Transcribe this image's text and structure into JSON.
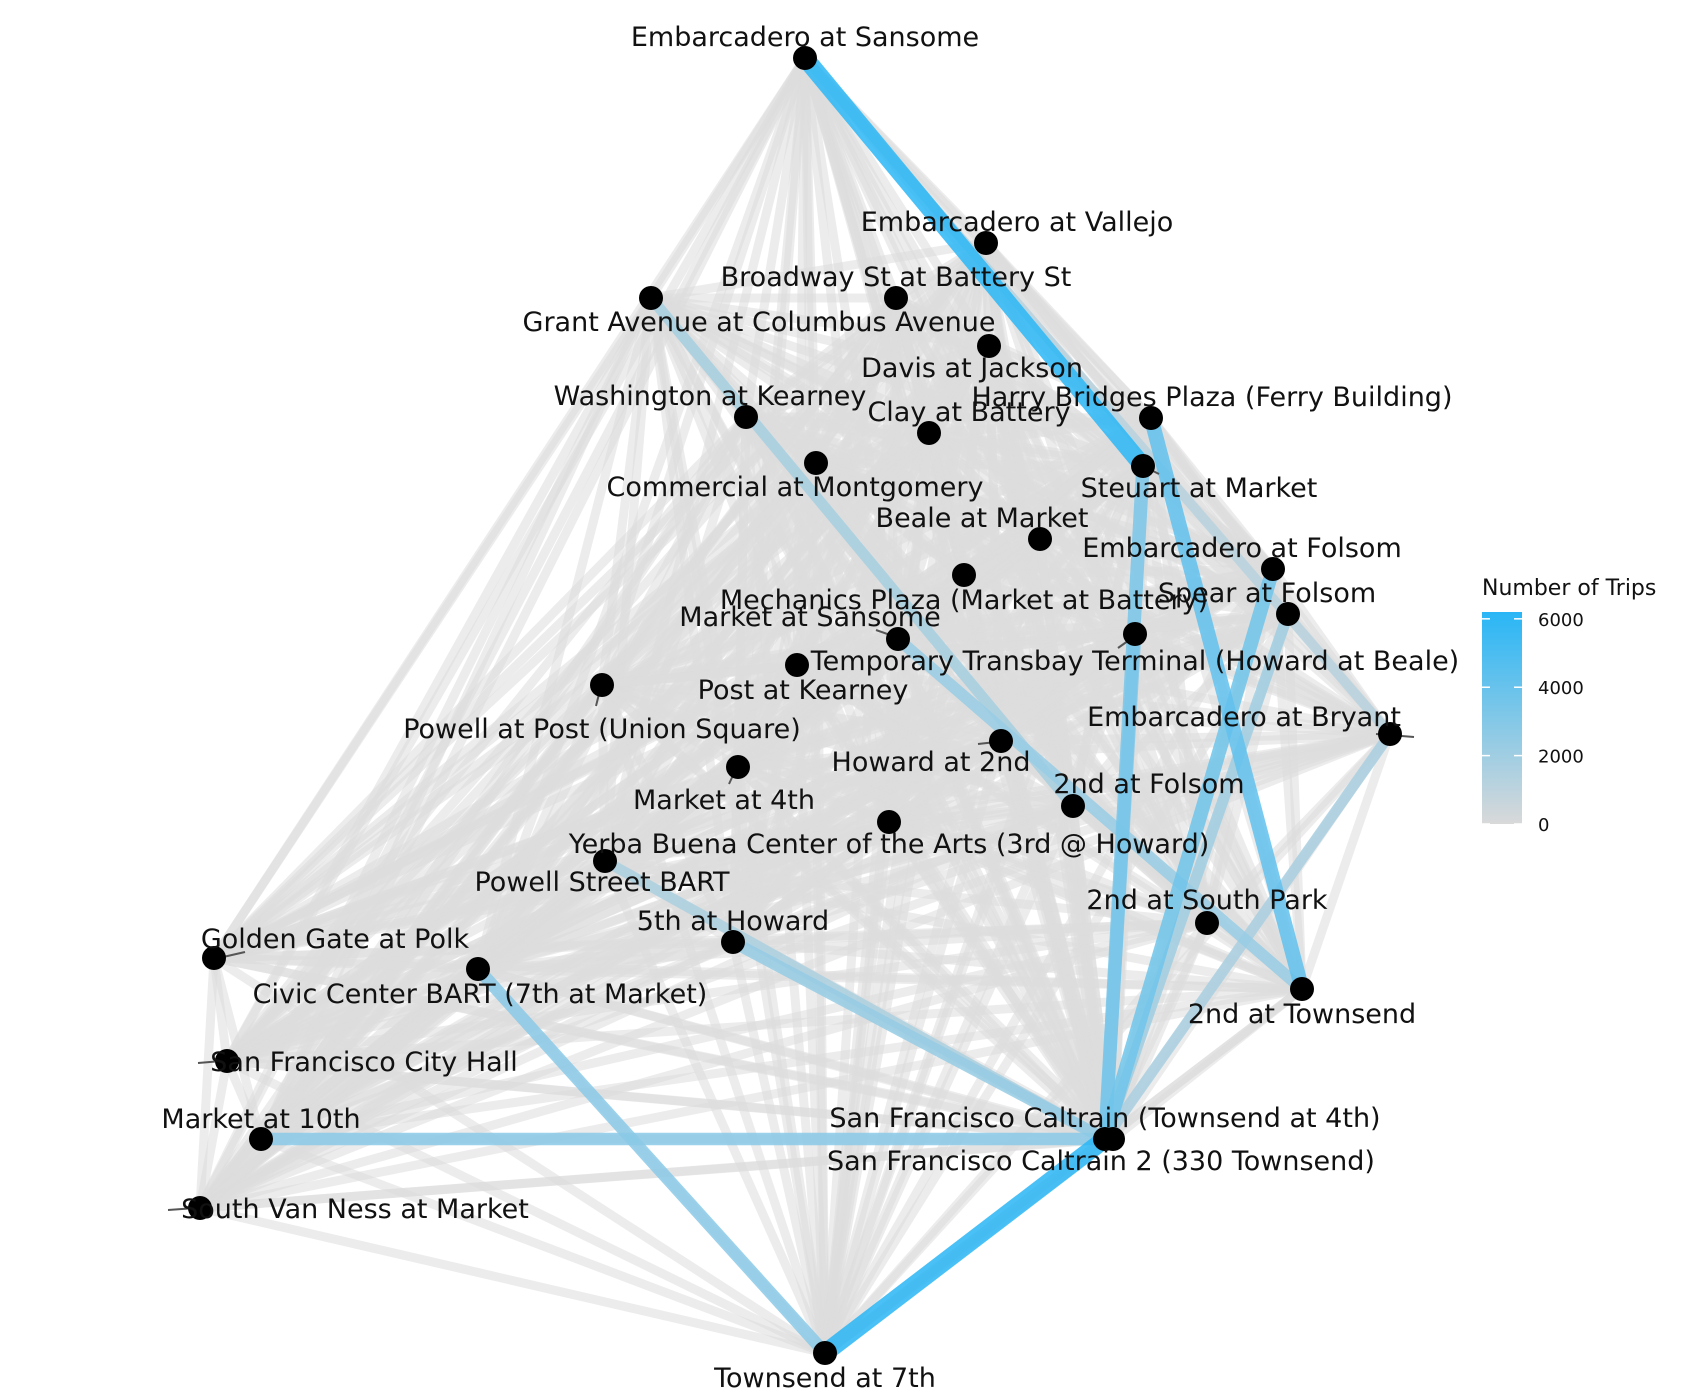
{
  "legend": {
    "title": "Number of Trips",
    "ticks": [
      6000,
      4000,
      2000,
      0
    ],
    "min": 0,
    "max": 6200,
    "colors": {
      "low": "#d9d9d9",
      "high": "#29b6f6"
    }
  },
  "colors": {
    "node": "#000000",
    "label": "#111111",
    "background": "#ffffff"
  },
  "stations": [
    "Embarcadero at Sansome",
    "Embarcadero at Vallejo",
    "Broadway St at Battery St",
    "Grant Avenue at Columbus Avenue",
    "Davis at Jackson",
    "Washington at Kearney",
    "Harry Bridges Plaza (Ferry Building)",
    "Clay at Battery",
    "Commercial at Montgomery",
    "Steuart at Market",
    "Beale at Market",
    "Embarcadero at Folsom",
    "Mechanics Plaza (Market at Battery)",
    "Spear at Folsom",
    "Market at Sansome",
    "Temporary Transbay Terminal (Howard at Beale)",
    "Post at Kearney",
    "Powell at Post (Union Square)",
    "Embarcadero at Bryant",
    "Howard at 2nd",
    "Market at 4th",
    "2nd at Folsom",
    "Yerba Buena Center of the Arts (3rd @ Howard)",
    "Powell Street BART",
    "2nd at South Park",
    "5th at Howard",
    "Golden Gate at Polk",
    "Civic Center BART (7th at Market)",
    "2nd at Townsend",
    "San Francisco City Hall",
    "Market at 10th",
    "San Francisco Caltrain (Townsend at 4th)",
    "San Francisco Caltrain 2 (330 Townsend)",
    "South Van Ness at Market",
    "Townsend at 7th"
  ],
  "major_flows": [
    {
      "from": "Embarcadero at Sansome",
      "to": "Steuart at Market",
      "trips": 6100
    },
    {
      "from": "Harry Bridges Plaza (Ferry Building)",
      "to": "2nd at Townsend",
      "trips": 4200
    },
    {
      "from": "Embarcadero at Folsom",
      "to": "San Francisco Caltrain (Townsend at 4th)",
      "trips": 3700
    },
    {
      "from": "Steuart at Market",
      "to": "San Francisco Caltrain (Townsend at 4th)",
      "trips": 3400
    },
    {
      "from": "Townsend at 7th",
      "to": "San Francisco Caltrain (Townsend at 4th)",
      "trips": 6200
    },
    {
      "from": "Market at 10th",
      "to": "San Francisco Caltrain (Townsend at 4th)",
      "trips": 2800
    },
    {
      "from": "Civic Center BART (7th at Market)",
      "to": "Townsend at 7th",
      "trips": 2800
    },
    {
      "from": "5th at Howard",
      "to": "San Francisco Caltrain (Townsend at 4th)",
      "trips": 2400
    },
    {
      "from": "Temporary Transbay Terminal (Howard at Beale)",
      "to": "San Francisco Caltrain (Townsend at 4th)",
      "trips": 3000
    },
    {
      "from": "Market at Sansome",
      "to": "2nd at Townsend",
      "trips": 2300
    },
    {
      "from": "Grant Avenue at Columbus Avenue",
      "to": "2nd at Folsom",
      "trips": 1800
    },
    {
      "from": "Embarcadero at Bryant",
      "to": "San Francisco Caltrain (Townsend at 4th)",
      "trips": 1700
    },
    {
      "from": "Powell Street BART",
      "to": "San Francisco Caltrain (Townsend at 4th)",
      "trips": 1600
    },
    {
      "from": "Embarcadero at Sansome",
      "to": "Embarcadero at Bryant",
      "trips": 1200
    },
    {
      "from": "Spear at Folsom",
      "to": "San Francisco Caltrain (Townsend at 4th)",
      "trips": 2000
    }
  ]
}
